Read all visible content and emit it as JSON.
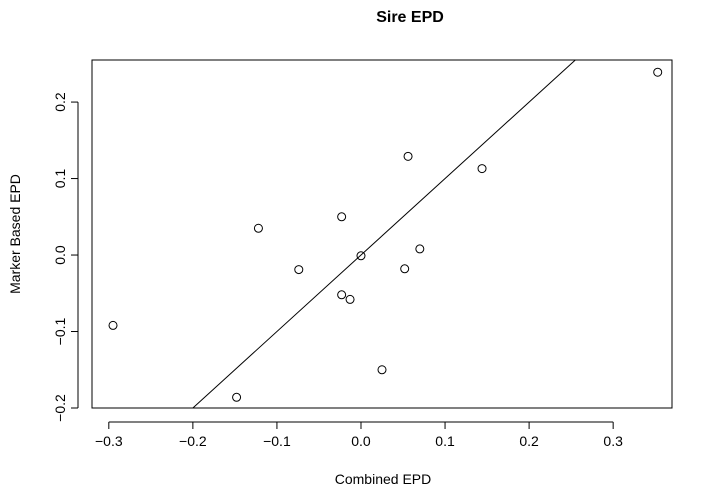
{
  "chart_data": {
    "type": "scatter",
    "title": "Sire EPD",
    "xlabel": "Combined EPD",
    "ylabel": "Marker Based EPD",
    "xlim": [
      -0.32,
      0.37
    ],
    "ylim": [
      -0.2,
      0.255
    ],
    "x_ticks": [
      -0.3,
      -0.2,
      -0.1,
      0.0,
      0.1,
      0.2,
      0.3
    ],
    "x_tick_labels": [
      "−0.3",
      "−0.2",
      "−0.1",
      "0.0",
      "0.1",
      "0.2",
      "0.3"
    ],
    "y_ticks": [
      -0.2,
      -0.1,
      0.0,
      0.1,
      0.2
    ],
    "y_tick_labels": [
      "−0.2",
      "−0.1",
      "0.0",
      "0.1",
      "0.2"
    ],
    "grid": false,
    "points": [
      {
        "x": -0.295,
        "y": -0.092
      },
      {
        "x": -0.148,
        "y": -0.186
      },
      {
        "x": -0.122,
        "y": 0.035
      },
      {
        "x": -0.074,
        "y": -0.019
      },
      {
        "x": -0.023,
        "y": 0.05
      },
      {
        "x": -0.023,
        "y": -0.052
      },
      {
        "x": -0.013,
        "y": -0.058
      },
      {
        "x": 0.0,
        "y": -0.001
      },
      {
        "x": 0.025,
        "y": -0.15
      },
      {
        "x": 0.052,
        "y": -0.018
      },
      {
        "x": 0.056,
        "y": 0.129
      },
      {
        "x": 0.07,
        "y": 0.008
      },
      {
        "x": 0.144,
        "y": 0.113
      },
      {
        "x": 0.353,
        "y": 0.239
      }
    ],
    "reference_line": {
      "intercept": 0,
      "slope": 1
    }
  }
}
